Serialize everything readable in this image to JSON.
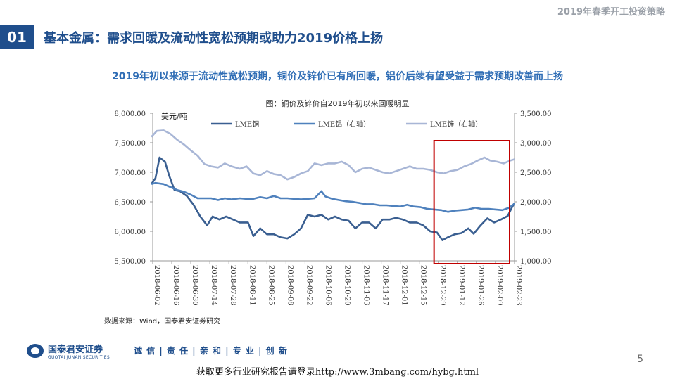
{
  "header": {
    "report_title": "2019年春季开工投资策略"
  },
  "section": {
    "number": "01",
    "title": "基本金属：需求回暖及流动性宽松预期或助力2019价格上扬"
  },
  "subtitle": "2019年初以来源于流动性宽松预期，铜价及锌价已有所回暖，铝价后续有望受益于需求预期改善而上扬",
  "chart_data": {
    "type": "line",
    "title": "图：铜价及锌价自2019年初以来回暖明显",
    "unit_label": "美元/吨",
    "x_tick_labels": [
      "2018-06-02",
      "2018-06-16",
      "2018-06-30",
      "2018-07-14",
      "2018-07-28",
      "2018-08-11",
      "2018-08-25",
      "2018-09-08",
      "2018-09-22",
      "2018-10-06",
      "2018-10-20",
      "2018-11-03",
      "2018-11-17",
      "2018-12-01",
      "2018-12-15",
      "2018-12-29",
      "2019-01-12",
      "2019-01-26",
      "2019-02-09",
      "2019-02-23"
    ],
    "left_axis": {
      "range": [
        5500,
        8000
      ],
      "tick_labels": [
        "8,000.00",
        "7,500.00",
        "7,000.00",
        "6,500.00",
        "6,000.00",
        "5,500.00"
      ]
    },
    "right_axis": {
      "range": [
        1000,
        3500
      ],
      "tick_labels": [
        "3,500.00",
        "3,000.00",
        "2,500.00",
        "2,000.00",
        "1,500.00",
        "1,000.00"
      ]
    },
    "legend_position": "top",
    "grid": false,
    "highlight": {
      "from": "2018-12-31",
      "to": "2019-02-23",
      "color": "#c00000"
    },
    "series": [
      {
        "name": "LME铜",
        "axis": "left",
        "color": "#3a5f91",
        "points": [
          [
            "2018-06-01",
            6800
          ],
          [
            "2018-06-04",
            6900
          ],
          [
            "2018-06-07",
            7250
          ],
          [
            "2018-06-11",
            7180
          ],
          [
            "2018-06-14",
            6950
          ],
          [
            "2018-06-18",
            6700
          ],
          [
            "2018-06-22",
            6680
          ],
          [
            "2018-06-27",
            6600
          ],
          [
            "2018-07-02",
            6450
          ],
          [
            "2018-07-07",
            6250
          ],
          [
            "2018-07-12",
            6100
          ],
          [
            "2018-07-16",
            6250
          ],
          [
            "2018-07-21",
            6200
          ],
          [
            "2018-07-26",
            6250
          ],
          [
            "2018-07-31",
            6200
          ],
          [
            "2018-08-05",
            6150
          ],
          [
            "2018-08-11",
            6150
          ],
          [
            "2018-08-15",
            5920
          ],
          [
            "2018-08-20",
            6050
          ],
          [
            "2018-08-25",
            5950
          ],
          [
            "2018-08-30",
            5950
          ],
          [
            "2018-09-04",
            5900
          ],
          [
            "2018-09-09",
            5880
          ],
          [
            "2018-09-14",
            5950
          ],
          [
            "2018-09-19",
            6050
          ],
          [
            "2018-09-24",
            6280
          ],
          [
            "2018-09-29",
            6250
          ],
          [
            "2018-10-04",
            6280
          ],
          [
            "2018-10-09",
            6200
          ],
          [
            "2018-10-14",
            6250
          ],
          [
            "2018-10-19",
            6200
          ],
          [
            "2018-10-24",
            6180
          ],
          [
            "2018-10-29",
            6050
          ],
          [
            "2018-11-03",
            6150
          ],
          [
            "2018-11-08",
            6150
          ],
          [
            "2018-11-13",
            6050
          ],
          [
            "2018-11-18",
            6200
          ],
          [
            "2018-11-23",
            6200
          ],
          [
            "2018-11-28",
            6230
          ],
          [
            "2018-12-03",
            6200
          ],
          [
            "2018-12-08",
            6150
          ],
          [
            "2018-12-13",
            6150
          ],
          [
            "2018-12-18",
            6100
          ],
          [
            "2018-12-23",
            6000
          ],
          [
            "2018-12-28",
            5980
          ],
          [
            "2019-01-01",
            5850
          ],
          [
            "2019-01-05",
            5900
          ],
          [
            "2019-01-10",
            5950
          ],
          [
            "2019-01-15",
            5970
          ],
          [
            "2019-01-20",
            6050
          ],
          [
            "2019-01-24",
            5960
          ],
          [
            "2019-01-29",
            6100
          ],
          [
            "2019-02-03",
            6220
          ],
          [
            "2019-02-08",
            6150
          ],
          [
            "2019-02-13",
            6200
          ],
          [
            "2019-02-18",
            6260
          ],
          [
            "2019-02-21",
            6400
          ],
          [
            "2019-02-23",
            6480
          ]
        ]
      },
      {
        "name": "LME铝（右轴）",
        "axis": "right",
        "color": "#4f81bd",
        "points": [
          [
            "2018-06-01",
            2300
          ],
          [
            "2018-06-04",
            2320
          ],
          [
            "2018-06-10",
            2300
          ],
          [
            "2018-06-15",
            2250
          ],
          [
            "2018-06-20",
            2200
          ],
          [
            "2018-06-25",
            2170
          ],
          [
            "2018-06-30",
            2120
          ],
          [
            "2018-07-05",
            2060
          ],
          [
            "2018-07-10",
            2060
          ],
          [
            "2018-07-15",
            2060
          ],
          [
            "2018-07-20",
            2030
          ],
          [
            "2018-07-25",
            2060
          ],
          [
            "2018-07-30",
            2040
          ],
          [
            "2018-08-05",
            2060
          ],
          [
            "2018-08-10",
            2050
          ],
          [
            "2018-08-15",
            2050
          ],
          [
            "2018-08-20",
            2080
          ],
          [
            "2018-08-25",
            2060
          ],
          [
            "2018-08-30",
            2100
          ],
          [
            "2018-09-04",
            2060
          ],
          [
            "2018-09-09",
            2060
          ],
          [
            "2018-09-14",
            2050
          ],
          [
            "2018-09-19",
            2040
          ],
          [
            "2018-09-24",
            2050
          ],
          [
            "2018-09-29",
            2060
          ],
          [
            "2018-10-04",
            2180
          ],
          [
            "2018-10-07",
            2090
          ],
          [
            "2018-10-12",
            2050
          ],
          [
            "2018-10-17",
            2030
          ],
          [
            "2018-10-22",
            2010
          ],
          [
            "2018-10-27",
            2000
          ],
          [
            "2018-11-01",
            1980
          ],
          [
            "2018-11-06",
            1960
          ],
          [
            "2018-11-11",
            1960
          ],
          [
            "2018-11-16",
            1940
          ],
          [
            "2018-11-21",
            1940
          ],
          [
            "2018-11-26",
            1930
          ],
          [
            "2018-12-01",
            1920
          ],
          [
            "2018-12-06",
            1950
          ],
          [
            "2018-12-11",
            1920
          ],
          [
            "2018-12-16",
            1910
          ],
          [
            "2018-12-21",
            1880
          ],
          [
            "2018-12-26",
            1870
          ],
          [
            "2018-12-31",
            1860
          ],
          [
            "2019-01-05",
            1830
          ],
          [
            "2019-01-10",
            1850
          ],
          [
            "2019-01-15",
            1860
          ],
          [
            "2019-01-20",
            1870
          ],
          [
            "2019-01-25",
            1900
          ],
          [
            "2019-01-30",
            1880
          ],
          [
            "2019-02-04",
            1880
          ],
          [
            "2019-02-09",
            1870
          ],
          [
            "2019-02-14",
            1860
          ],
          [
            "2019-02-19",
            1900
          ],
          [
            "2019-02-23",
            1970
          ]
        ]
      },
      {
        "name": "LME锌（右轴）",
        "axis": "right",
        "color": "#a8b6d6",
        "points": [
          [
            "2018-06-01",
            3100
          ],
          [
            "2018-06-05",
            3200
          ],
          [
            "2018-06-10",
            3210
          ],
          [
            "2018-06-15",
            3150
          ],
          [
            "2018-06-20",
            3050
          ],
          [
            "2018-06-25",
            2970
          ],
          [
            "2018-06-30",
            2870
          ],
          [
            "2018-07-05",
            2780
          ],
          [
            "2018-07-10",
            2640
          ],
          [
            "2018-07-15",
            2600
          ],
          [
            "2018-07-20",
            2580
          ],
          [
            "2018-07-25",
            2650
          ],
          [
            "2018-07-30",
            2600
          ],
          [
            "2018-08-05",
            2560
          ],
          [
            "2018-08-10",
            2600
          ],
          [
            "2018-08-15",
            2480
          ],
          [
            "2018-08-20",
            2450
          ],
          [
            "2018-08-25",
            2520
          ],
          [
            "2018-08-30",
            2470
          ],
          [
            "2018-09-04",
            2450
          ],
          [
            "2018-09-09",
            2380
          ],
          [
            "2018-09-14",
            2420
          ],
          [
            "2018-09-19",
            2480
          ],
          [
            "2018-09-24",
            2520
          ],
          [
            "2018-09-29",
            2650
          ],
          [
            "2018-10-04",
            2620
          ],
          [
            "2018-10-09",
            2650
          ],
          [
            "2018-10-14",
            2650
          ],
          [
            "2018-10-19",
            2680
          ],
          [
            "2018-10-24",
            2620
          ],
          [
            "2018-10-29",
            2500
          ],
          [
            "2018-11-03",
            2560
          ],
          [
            "2018-11-08",
            2580
          ],
          [
            "2018-11-13",
            2540
          ],
          [
            "2018-11-18",
            2500
          ],
          [
            "2018-11-23",
            2480
          ],
          [
            "2018-11-28",
            2520
          ],
          [
            "2018-12-03",
            2560
          ],
          [
            "2018-12-08",
            2600
          ],
          [
            "2018-12-13",
            2560
          ],
          [
            "2018-12-18",
            2560
          ],
          [
            "2018-12-23",
            2540
          ],
          [
            "2018-12-28",
            2500
          ],
          [
            "2019-01-02",
            2480
          ],
          [
            "2019-01-07",
            2520
          ],
          [
            "2019-01-12",
            2540
          ],
          [
            "2019-01-17",
            2600
          ],
          [
            "2019-01-22",
            2640
          ],
          [
            "2019-01-27",
            2700
          ],
          [
            "2019-02-01",
            2750
          ],
          [
            "2019-02-05",
            2700
          ],
          [
            "2019-02-10",
            2680
          ],
          [
            "2019-02-15",
            2650
          ],
          [
            "2019-02-20",
            2700
          ],
          [
            "2019-02-23",
            2720
          ]
        ]
      }
    ]
  },
  "source_note": "数据来源：Wind，国泰君安证券研究",
  "footer": {
    "logo_cn": "国泰君安证券",
    "logo_en": "GUOTAI JUNAN SECURITIES",
    "slogan": "诚 信 | 责 任 | 亲 和 | 专 业 | 创 新",
    "page_number": "5",
    "link_text": "获取更多行业研究报告请登录http://www.3mbang.com/hybg.html"
  }
}
